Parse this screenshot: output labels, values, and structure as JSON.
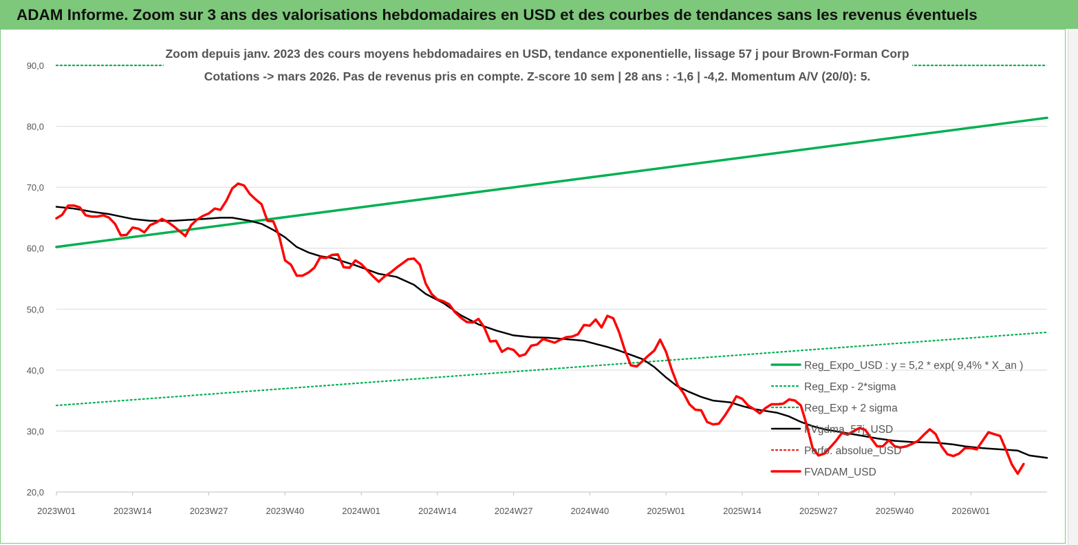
{
  "header": {
    "title": "ADAM Informe. Zoom sur 3 ans des valorisations hebdomadaires en USD et des courbes de tendances sans les revenus éventuels"
  },
  "chart_data": {
    "type": "line",
    "subtitle_line1": "Zoom depuis janv. 2023 des cours moyens hebdomadaires en USD, tendance exponentielle, lissage 57 j pour Brown-Forman Corp",
    "subtitle_line2": "Cotations -> mars 2026. Pas de revenus pris en  compte. Z-score 10 sem  | 28 ans : -1,6 | -4,2. Momentum A/V (20/0): 5.",
    "xlabel": "",
    "ylabel": "",
    "x_range_weeks": [
      0,
      169
    ],
    "ylim": [
      20,
      90
    ],
    "y_ticks": [
      "20,0",
      "30,0",
      "40,0",
      "50,0",
      "60,0",
      "70,0",
      "80,0",
      "90,0"
    ],
    "x_ticks": [
      {
        "label": "2023W01",
        "week": 0
      },
      {
        "label": "2023W14",
        "week": 13
      },
      {
        "label": "2023W27",
        "week": 26
      },
      {
        "label": "2023W40",
        "week": 39
      },
      {
        "label": "2024W01",
        "week": 52
      },
      {
        "label": "2024W14",
        "week": 65
      },
      {
        "label": "2024W27",
        "week": 78
      },
      {
        "label": "2024W40",
        "week": 91
      },
      {
        "label": "2025W01",
        "week": 104
      },
      {
        "label": "2025W14",
        "week": 117
      },
      {
        "label": "2025W27",
        "week": 130
      },
      {
        "label": "2025W40",
        "week": 143
      },
      {
        "label": "2026W01",
        "week": 156
      }
    ],
    "grid": "horizontal",
    "legend_position": "right",
    "series": [
      {
        "name": "Reg_Expo_USD : y = 5,2 * exp( 9,4% *  X_an )",
        "color": "#00b050",
        "style": "thick",
        "points": [
          [
            0,
            60.2
          ],
          [
            169,
            81.4
          ]
        ]
      },
      {
        "name": "Reg_Exp - 2*sigma",
        "color": "#00b050",
        "style": "dotted",
        "points": [
          [
            0,
            34.2
          ],
          [
            169,
            46.2
          ]
        ]
      },
      {
        "name": "Reg_Exp + 2 sigma",
        "color": "#00b050",
        "style": "dotted",
        "points": [
          [
            0,
            90.0
          ],
          [
            169,
            90.0
          ]
        ]
      },
      {
        "name": "FVgdma_57j_USD",
        "color": "#000000",
        "style": "solid",
        "points": [
          [
            0,
            66.8
          ],
          [
            3,
            66.5
          ],
          [
            6,
            66.0
          ],
          [
            9,
            65.6
          ],
          [
            11,
            65.2
          ],
          [
            13,
            64.8
          ],
          [
            16,
            64.5
          ],
          [
            20,
            64.5
          ],
          [
            25,
            64.8
          ],
          [
            28,
            65.0
          ],
          [
            30,
            65.0
          ],
          [
            33,
            64.5
          ],
          [
            35,
            64.0
          ],
          [
            37,
            63.0
          ],
          [
            39,
            61.8
          ],
          [
            41,
            60.2
          ],
          [
            43,
            59.3
          ],
          [
            45,
            58.7
          ],
          [
            47,
            58.4
          ],
          [
            49,
            57.8
          ],
          [
            51,
            57.2
          ],
          [
            53,
            56.5
          ],
          [
            55,
            55.8
          ],
          [
            58,
            55.3
          ],
          [
            61,
            54.0
          ],
          [
            63,
            52.5
          ],
          [
            66,
            51.0
          ],
          [
            69,
            49.0
          ],
          [
            72,
            47.5
          ],
          [
            75,
            46.5
          ],
          [
            78,
            45.7
          ],
          [
            81,
            45.4
          ],
          [
            84,
            45.3
          ],
          [
            88,
            45.0
          ],
          [
            90,
            44.8
          ],
          [
            92,
            44.3
          ],
          [
            94,
            43.8
          ],
          [
            96,
            43.2
          ],
          [
            98,
            42.5
          ],
          [
            100,
            41.8
          ],
          [
            102,
            40.5
          ],
          [
            104,
            38.8
          ],
          [
            106,
            37.3
          ],
          [
            108,
            36.4
          ],
          [
            110,
            35.6
          ],
          [
            112,
            35.0
          ],
          [
            115,
            34.7
          ],
          [
            117,
            34.1
          ],
          [
            119,
            33.6
          ],
          [
            121,
            33.3
          ],
          [
            123,
            33.0
          ],
          [
            125,
            32.4
          ],
          [
            127,
            31.5
          ],
          [
            129,
            30.8
          ],
          [
            131,
            30.3
          ],
          [
            134,
            29.8
          ],
          [
            137,
            29.3
          ],
          [
            140,
            28.8
          ],
          [
            143,
            28.4
          ],
          [
            146,
            28.2
          ],
          [
            150,
            28.1
          ],
          [
            153,
            27.8
          ],
          [
            155,
            27.5
          ],
          [
            158,
            27.2
          ],
          [
            161,
            27.0
          ],
          [
            164,
            26.8
          ],
          [
            166,
            26.0
          ],
          [
            169,
            25.6
          ]
        ]
      },
      {
        "name": "Perfo. absolue_USD",
        "color": "#e02020",
        "style": "dotted",
        "points": []
      },
      {
        "name": "FVADAM_USD",
        "color": "#ff0000",
        "style": "thick",
        "points": [
          [
            0,
            64.9
          ],
          [
            1,
            65.5
          ],
          [
            2,
            67.0
          ],
          [
            3,
            67.0
          ],
          [
            4,
            66.7
          ],
          [
            5,
            65.4
          ],
          [
            6,
            65.2
          ],
          [
            7,
            65.2
          ],
          [
            8,
            65.4
          ],
          [
            9,
            65.0
          ],
          [
            10,
            64.0
          ],
          [
            11,
            62.1
          ],
          [
            12,
            62.2
          ],
          [
            13,
            63.4
          ],
          [
            14,
            63.2
          ],
          [
            15,
            62.6
          ],
          [
            16,
            63.8
          ],
          [
            17,
            64.2
          ],
          [
            18,
            64.8
          ],
          [
            19,
            64.3
          ],
          [
            20,
            63.6
          ],
          [
            21,
            62.8
          ],
          [
            22,
            62.0
          ],
          [
            23,
            63.8
          ],
          [
            24,
            64.7
          ],
          [
            25,
            65.3
          ],
          [
            26,
            65.7
          ],
          [
            27,
            66.5
          ],
          [
            28,
            66.3
          ],
          [
            29,
            67.8
          ],
          [
            30,
            69.8
          ],
          [
            31,
            70.6
          ],
          [
            32,
            70.3
          ],
          [
            33,
            68.9
          ],
          [
            34,
            68.0
          ],
          [
            35,
            67.2
          ],
          [
            36,
            64.5
          ],
          [
            37,
            64.4
          ],
          [
            38,
            62.0
          ],
          [
            39,
            58.0
          ],
          [
            40,
            57.3
          ],
          [
            41,
            55.5
          ],
          [
            42,
            55.5
          ],
          [
            43,
            56.0
          ],
          [
            44,
            56.8
          ],
          [
            45,
            58.5
          ],
          [
            46,
            58.4
          ],
          [
            47,
            58.9
          ],
          [
            48,
            59.0
          ],
          [
            49,
            56.9
          ],
          [
            50,
            56.8
          ],
          [
            51,
            58.0
          ],
          [
            52,
            57.4
          ],
          [
            53,
            56.4
          ],
          [
            54,
            55.4
          ],
          [
            55,
            54.5
          ],
          [
            56,
            55.4
          ],
          [
            57,
            56.0
          ],
          [
            58,
            56.8
          ],
          [
            59,
            57.5
          ],
          [
            60,
            58.2
          ],
          [
            61,
            58.3
          ],
          [
            62,
            57.3
          ],
          [
            63,
            54.2
          ],
          [
            64,
            52.5
          ],
          [
            65,
            51.6
          ],
          [
            66,
            51.3
          ],
          [
            67,
            50.8
          ],
          [
            68,
            49.5
          ],
          [
            69,
            48.6
          ],
          [
            70,
            47.9
          ],
          [
            71,
            47.8
          ],
          [
            72,
            48.4
          ],
          [
            73,
            47.0
          ],
          [
            74,
            44.7
          ],
          [
            75,
            44.8
          ],
          [
            76,
            43.0
          ],
          [
            77,
            43.6
          ],
          [
            78,
            43.3
          ],
          [
            79,
            42.3
          ],
          [
            80,
            42.6
          ],
          [
            81,
            44.0
          ],
          [
            82,
            44.2
          ],
          [
            83,
            45.1
          ],
          [
            84,
            44.8
          ],
          [
            85,
            44.5
          ],
          [
            86,
            45.0
          ],
          [
            87,
            45.4
          ],
          [
            88,
            45.5
          ],
          [
            89,
            45.9
          ],
          [
            90,
            47.4
          ],
          [
            91,
            47.3
          ],
          [
            92,
            48.3
          ],
          [
            93,
            47.0
          ],
          [
            94,
            48.9
          ],
          [
            95,
            48.5
          ],
          [
            96,
            46.2
          ],
          [
            97,
            43.2
          ],
          [
            98,
            40.8
          ],
          [
            99,
            40.6
          ],
          [
            100,
            41.5
          ],
          [
            101,
            42.4
          ],
          [
            102,
            43.2
          ],
          [
            103,
            45.0
          ],
          [
            104,
            43.0
          ],
          [
            105,
            40.0
          ],
          [
            106,
            37.5
          ],
          [
            107,
            36.2
          ],
          [
            108,
            34.4
          ],
          [
            109,
            33.5
          ],
          [
            110,
            33.4
          ],
          [
            111,
            31.5
          ],
          [
            112,
            31.1
          ],
          [
            113,
            31.2
          ],
          [
            114,
            32.5
          ],
          [
            115,
            34.0
          ],
          [
            116,
            35.7
          ],
          [
            117,
            35.3
          ],
          [
            118,
            34.2
          ],
          [
            119,
            33.6
          ],
          [
            120,
            32.9
          ],
          [
            121,
            33.8
          ],
          [
            122,
            34.4
          ],
          [
            123,
            34.4
          ],
          [
            124,
            34.5
          ],
          [
            125,
            35.2
          ],
          [
            126,
            35.0
          ],
          [
            127,
            34.2
          ],
          [
            128,
            31.0
          ],
          [
            129,
            27.2
          ],
          [
            130,
            26.0
          ],
          [
            131,
            26.3
          ],
          [
            132,
            27.3
          ],
          [
            133,
            28.4
          ],
          [
            134,
            29.7
          ],
          [
            135,
            29.4
          ],
          [
            136,
            30.0
          ],
          [
            137,
            30.5
          ],
          [
            138,
            30.2
          ],
          [
            139,
            28.8
          ],
          [
            140,
            27.5
          ],
          [
            141,
            27.5
          ],
          [
            142,
            28.5
          ],
          [
            143,
            27.5
          ],
          [
            144,
            27.3
          ],
          [
            145,
            27.5
          ],
          [
            146,
            27.9
          ],
          [
            147,
            28.4
          ],
          [
            148,
            29.4
          ],
          [
            149,
            30.3
          ],
          [
            150,
            29.5
          ],
          [
            151,
            27.5
          ],
          [
            152,
            26.2
          ],
          [
            153,
            25.9
          ],
          [
            154,
            26.3
          ],
          [
            155,
            27.2
          ],
          [
            156,
            27.2
          ],
          [
            157,
            27.0
          ],
          [
            158,
            28.4
          ],
          [
            159,
            29.8
          ],
          [
            160,
            29.5
          ],
          [
            161,
            29.2
          ],
          [
            162,
            26.9
          ],
          [
            163,
            24.5
          ],
          [
            164,
            23.0
          ],
          [
            165,
            24.6
          ]
        ]
      }
    ]
  }
}
